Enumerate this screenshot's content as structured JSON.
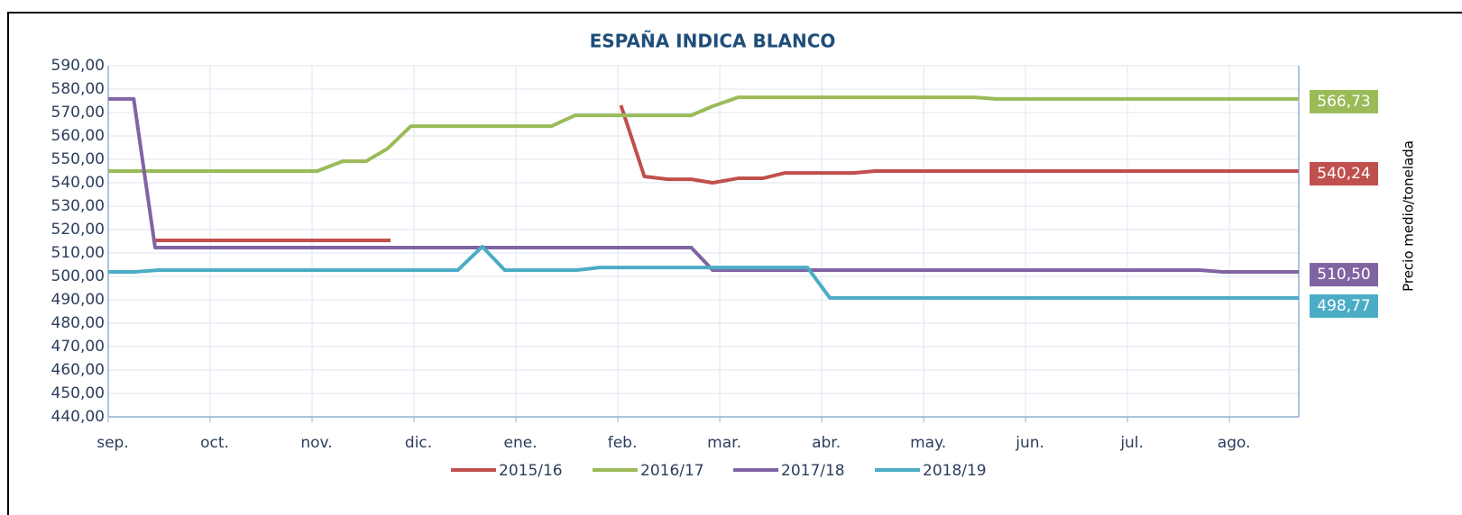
{
  "chart_data": {
    "type": "line",
    "title": "ESPAÑA INDICA BLANCO",
    "y_axis_label": "Precio medio/tonelada",
    "xlim": [
      0,
      11.68
    ],
    "xticks": [
      {
        "value": 0,
        "label": "sep."
      },
      {
        "value": 1,
        "label": "oct."
      },
      {
        "value": 2,
        "label": "nov."
      },
      {
        "value": 3,
        "label": "dic."
      },
      {
        "value": 4,
        "label": "ene."
      },
      {
        "value": 5,
        "label": "feb."
      },
      {
        "value": 6,
        "label": "mar."
      },
      {
        "value": 7,
        "label": "abr."
      },
      {
        "value": 8,
        "label": "may."
      },
      {
        "value": 9,
        "label": "jun."
      },
      {
        "value": 10,
        "label": "jul."
      },
      {
        "value": 11,
        "label": "ago."
      }
    ],
    "ylim": [
      440,
      590
    ],
    "yticks": [
      {
        "value": 440,
        "label": "440,00"
      },
      {
        "value": 450,
        "label": "450,00"
      },
      {
        "value": 460,
        "label": "460,00"
      },
      {
        "value": 470,
        "label": "470,00"
      },
      {
        "value": 480,
        "label": "480,00"
      },
      {
        "value": 490,
        "label": "490,00"
      },
      {
        "value": 500,
        "label": "500,00"
      },
      {
        "value": 510,
        "label": "510,00"
      },
      {
        "value": 520,
        "label": "520,00"
      },
      {
        "value": 530,
        "label": "530,00"
      },
      {
        "value": 540,
        "label": "540,00"
      },
      {
        "value": 550,
        "label": "550,00"
      },
      {
        "value": 560,
        "label": "560,00"
      },
      {
        "value": 570,
        "label": "570,00"
      },
      {
        "value": 580,
        "label": "580,00"
      },
      {
        "value": 590,
        "label": "590,00"
      }
    ],
    "grid": true,
    "legend": "bottom",
    "series": [
      {
        "name": "2015/16",
        "color": "#c0504d",
        "end_label": "540,24",
        "x": [
          0.46,
          2.77,
          3.9,
          5.03,
          5.26,
          5.49,
          5.72,
          5.93,
          6.18,
          6.42,
          6.64,
          7.31,
          7.52,
          11.68
        ],
        "values": [
          515.4,
          515.4,
          null,
          573.1,
          542.7,
          541.5,
          541.5,
          540,
          541.9,
          541.9,
          544.2,
          544.2,
          545,
          545
        ]
      },
      {
        "name": "2016/17",
        "color": "#9bbb59",
        "end_label": "566,73",
        "x": [
          0,
          2.05,
          2.3,
          2.53,
          2.74,
          2.97,
          4.35,
          4.58,
          5.72,
          5.93,
          6.18,
          8.5,
          8.71,
          11.68
        ],
        "values": [
          545,
          545,
          549.2,
          549.2,
          554.6,
          564.2,
          564.2,
          568.8,
          568.8,
          572.7,
          576.5,
          576.5,
          575.8,
          575.8
        ]
      },
      {
        "name": "2017/18",
        "color": "#8064a2",
        "end_label": "510,50",
        "x": [
          0,
          0.25,
          0.46,
          5.72,
          5.93,
          10.71,
          10.94,
          11.68
        ],
        "values": [
          575.8,
          575.8,
          512.3,
          512.3,
          502.7,
          502.7,
          501.9,
          501.9
        ]
      },
      {
        "name": "2018/19",
        "color": "#4bacc6",
        "end_label": "498,77",
        "x": [
          0,
          0.25,
          0.49,
          3.43,
          3.67,
          3.89,
          4.6,
          4.82,
          6.86,
          7.08,
          11.68
        ],
        "values": [
          501.9,
          501.9,
          502.7,
          502.7,
          512.7,
          502.7,
          502.7,
          503.8,
          503.8,
          490.8,
          490.8
        ]
      }
    ]
  }
}
